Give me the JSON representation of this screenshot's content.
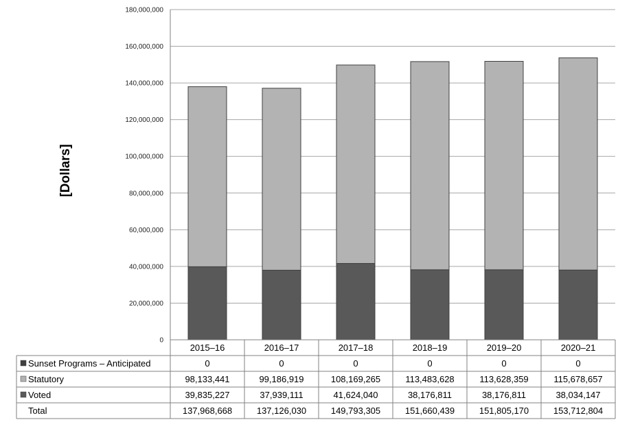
{
  "chart_data": {
    "type": "bar",
    "stacked": true,
    "ylabel": "[Dollars]",
    "ylim": [
      0,
      180000000
    ],
    "yticks": [
      "0",
      "20,000,000",
      "40,000,000",
      "60,000,000",
      "80,000,000",
      "100,000,000",
      "120,000,000",
      "140,000,000",
      "160,000,000",
      "180,000,000"
    ],
    "ytick_values": [
      0,
      20000000,
      40000000,
      60000000,
      80000000,
      100000000,
      120000000,
      140000000,
      160000000,
      180000000
    ],
    "grid": true,
    "legend": "data table rows",
    "categories": [
      "2015–16",
      "2016–17",
      "2017–18",
      "2018–19",
      "2019–20",
      "2020–21"
    ],
    "series": [
      {
        "name": "Sunset Programs – Anticipated",
        "color": "#3f3f3f",
        "values": [
          0,
          0,
          0,
          0,
          0,
          0
        ],
        "labels": [
          "0",
          "0",
          "0",
          "0",
          "0",
          "0"
        ]
      },
      {
        "name": "Statutory",
        "color": "#b3b3b3",
        "values": [
          98133441,
          99186919,
          108169265,
          113483628,
          113628359,
          115678657
        ],
        "labels": [
          "98,133,441",
          "99,186,919",
          "108,169,265",
          "113,483,628",
          "113,628,359",
          "115,678,657"
        ]
      },
      {
        "name": "Voted",
        "color": "#595959",
        "values": [
          39835227,
          37939111,
          41624040,
          38176811,
          38176811,
          38034147
        ],
        "labels": [
          "39,835,227",
          "37,939,111",
          "41,624,040",
          "38,176,811",
          "38,176,811",
          "38,034,147"
        ]
      }
    ],
    "totals": {
      "name": "Total",
      "values": [
        137968668,
        137126030,
        149793305,
        151660439,
        151805170,
        153712804
      ],
      "labels": [
        "137,968,668",
        "137,126,030",
        "149,793,305",
        "151,660,439",
        "151,805,170",
        "153,712,804"
      ]
    }
  }
}
